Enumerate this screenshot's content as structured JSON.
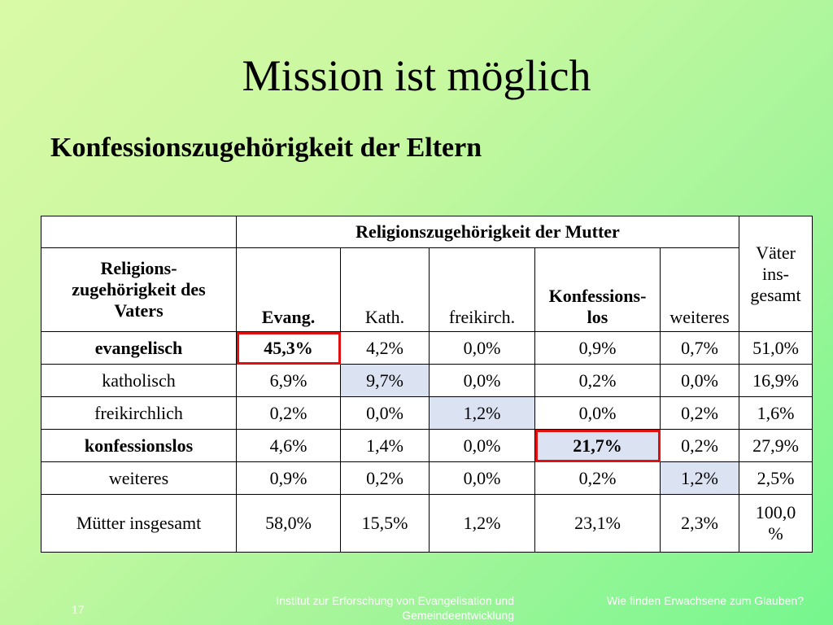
{
  "slide": {
    "title": "Mission ist möglich",
    "subtitle": "Konfessionszugehörigkeit der Eltern"
  },
  "table": {
    "mother_header": "Religionszugehörigkeit der Mutter",
    "father_header": "Religions-\nzugehörigkeit des\nVaters",
    "total_col_header": "Väter\nins-\ngesamt",
    "columns": [
      "Evang.",
      "Kath.",
      "freikirch.",
      "Konfessions-\nlos",
      "weiteres"
    ],
    "rows": [
      {
        "label": "evangelisch",
        "values": [
          "45,3%",
          "4,2%",
          "0,0%",
          "0,9%",
          "0,7%"
        ],
        "total": "51,0%"
      },
      {
        "label": "katholisch",
        "values": [
          "6,9%",
          "9,7%",
          "0,0%",
          "0,2%",
          "0,0%"
        ],
        "total": "16,9%"
      },
      {
        "label": "freikirchlich",
        "values": [
          "0,2%",
          "0,0%",
          "1,2%",
          "0,0%",
          "0,2%"
        ],
        "total": "1,6%"
      },
      {
        "label": "konfessionslos",
        "values": [
          "4,6%",
          "1,4%",
          "0,0%",
          "21,7%",
          "0,2%"
        ],
        "total": "27,9%"
      },
      {
        "label": "weiteres",
        "values": [
          "0,9%",
          "0,2%",
          "0,0%",
          "0,2%",
          "1,2%"
        ],
        "total": "2,5%"
      },
      {
        "label": "Mütter insgesamt",
        "values": [
          "58,0%",
          "15,5%",
          "1,2%",
          "23,1%",
          "2,3%"
        ],
        "total": "100,0\n%"
      }
    ]
  },
  "footer": {
    "page_number": "17",
    "institute": "Institut zur Erforschung von Evangelisation und Gemeindeentwicklung",
    "conference": "Wie finden Erwachsene zum Glauben?"
  }
}
